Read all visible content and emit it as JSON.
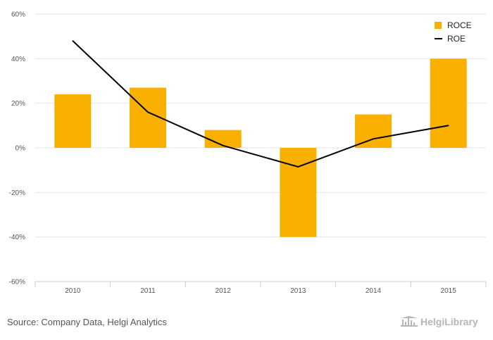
{
  "chart_data": {
    "type": "bar",
    "categories": [
      "2010",
      "2011",
      "2012",
      "2013",
      "2014",
      "2015"
    ],
    "series": [
      {
        "name": "ROCE",
        "kind": "bar",
        "color": "#f9b000",
        "values": [
          24,
          27,
          8,
          -40,
          15,
          40
        ]
      },
      {
        "name": "ROE",
        "kind": "line",
        "color": "#000000",
        "values": [
          48,
          16,
          1,
          -8.5,
          4,
          10
        ]
      }
    ],
    "ylim": [
      -60,
      60
    ],
    "yticks": [
      "60%",
      "40%",
      "20%",
      "0%",
      "-20%",
      "-40%",
      "-60%"
    ],
    "ytick_values": [
      60,
      40,
      20,
      0,
      -20,
      -40,
      -60
    ],
    "grid": true,
    "legend_position": "top-right"
  },
  "footer": {
    "source": "Source: Company Data, Helgi Analytics",
    "brand": "HelgiLibrary"
  },
  "colors": {
    "bar": "#f9b000",
    "line": "#000000",
    "grid": "#e6e6e6",
    "brand": "#b5b5b5"
  }
}
